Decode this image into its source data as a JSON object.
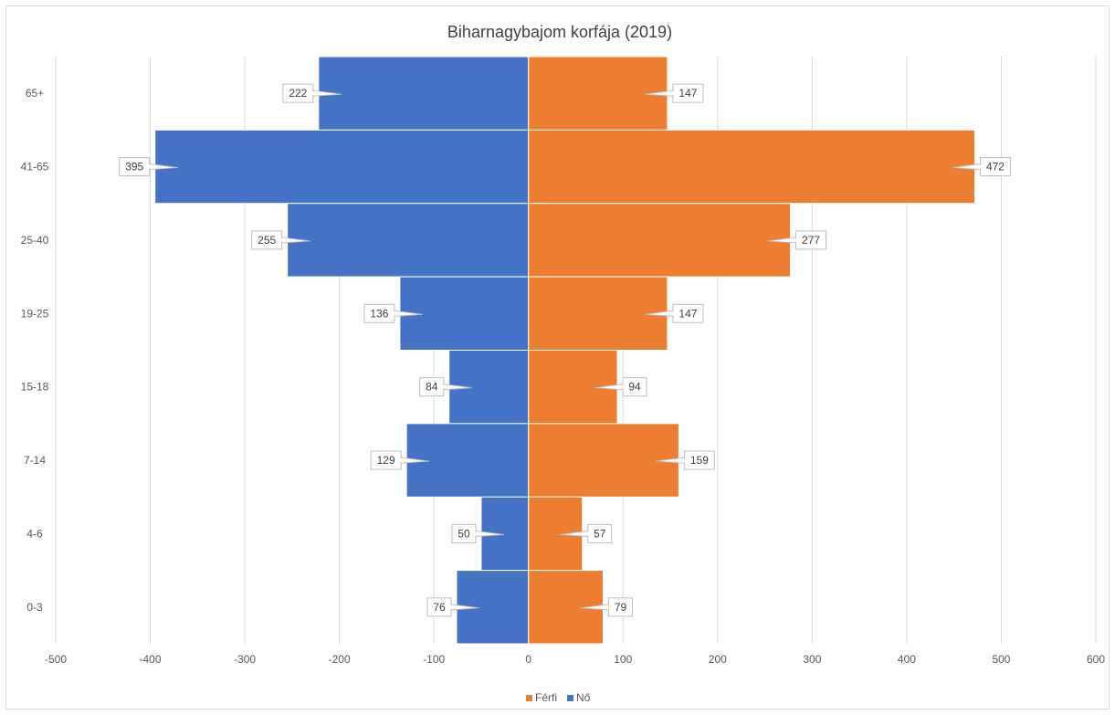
{
  "chart_data": {
    "type": "bar",
    "orientation": "horizontal",
    "title": "Biharnagybajom korfája (2019)",
    "categories": [
      "65+",
      "41-65",
      "25-40",
      "19-25",
      "15-18",
      "7-14",
      "4-6",
      "0-3"
    ],
    "series": [
      {
        "name": "Nő",
        "color": "#4472c4",
        "values": [
          -222,
          -395,
          -255,
          -136,
          -84,
          -129,
          -50,
          -76
        ],
        "labels": [
          "222",
          "395",
          "255",
          "136",
          "84",
          "129",
          "50",
          "76"
        ]
      },
      {
        "name": "Férfi",
        "color": "#ed7d31",
        "values": [
          147,
          472,
          277,
          147,
          94,
          159,
          57,
          79
        ],
        "labels": [
          "147",
          "472",
          "277",
          "147",
          "94",
          "159",
          "57",
          "79"
        ]
      }
    ],
    "xlim": [
      -500,
      600
    ],
    "xticks": [
      -500,
      -400,
      -300,
      -200,
      -100,
      0,
      100,
      200,
      300,
      400,
      500,
      600
    ],
    "xtick_labels": [
      "-500",
      "-400",
      "-300",
      "-200",
      "-100",
      "0",
      "100",
      "200",
      "300",
      "400",
      "500",
      "600"
    ],
    "grid": "vertical",
    "legend": {
      "position": "bottom",
      "entries": [
        "Férfi",
        "Nő"
      ]
    },
    "xlabel": "",
    "ylabel": ""
  }
}
